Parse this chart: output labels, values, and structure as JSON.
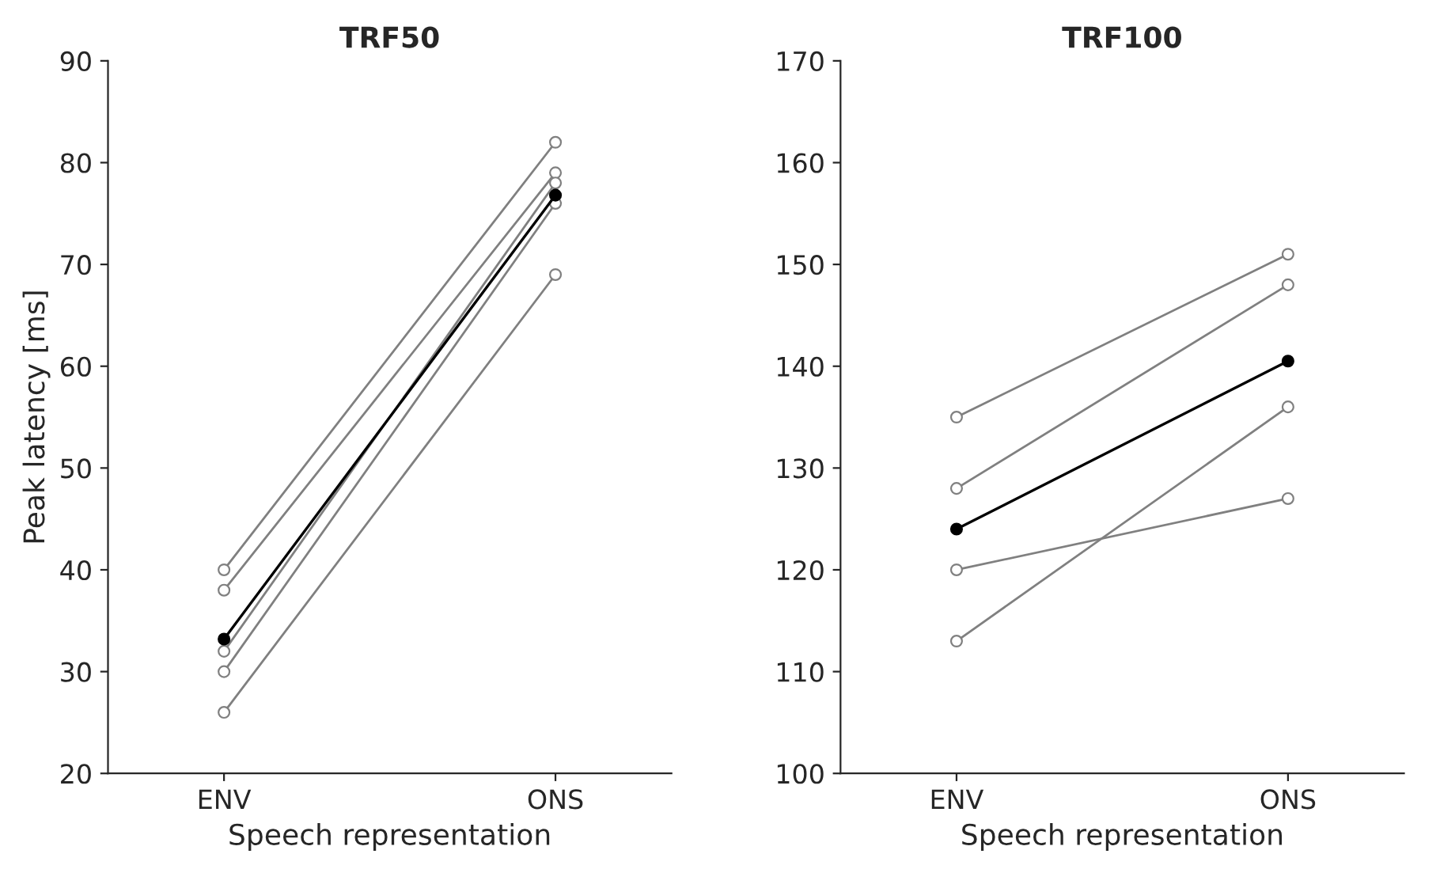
{
  "chart_data": [
    {
      "type": "line",
      "title": "TRF50",
      "xlabel": "Speech representation",
      "ylabel": "Peak latency [ms]",
      "categories": [
        "ENV",
        "ONS"
      ],
      "ylim": [
        20,
        90
      ],
      "yticks": [
        20,
        30,
        40,
        50,
        60,
        70,
        80,
        90
      ],
      "grid": false,
      "legend": false,
      "marker": "circle",
      "series": [
        {
          "color": "#808080",
          "values": [
            40,
            82
          ]
        },
        {
          "color": "#808080",
          "values": [
            38,
            79
          ]
        },
        {
          "color": "#808080",
          "values": [
            32,
            78
          ]
        },
        {
          "color": "#808080",
          "values": [
            30,
            76
          ]
        },
        {
          "color": "#808080",
          "values": [
            26,
            69
          ]
        },
        {
          "color": "#000000",
          "values": [
            33.2,
            76.8
          ]
        }
      ]
    },
    {
      "type": "line",
      "title": "TRF100",
      "xlabel": "Speech representation",
      "categories": [
        "ENV",
        "ONS"
      ],
      "ylim": [
        100,
        170
      ],
      "yticks": [
        100,
        110,
        120,
        130,
        140,
        150,
        160,
        170
      ],
      "grid": false,
      "legend": false,
      "marker": "circle",
      "series": [
        {
          "color": "#808080",
          "values": [
            135,
            151
          ]
        },
        {
          "color": "#808080",
          "values": [
            128,
            148
          ]
        },
        {
          "color": "#808080",
          "values": [
            120,
            127
          ]
        },
        {
          "color": "#808080",
          "values": [
            113,
            136
          ]
        },
        {
          "color": "#000000",
          "values": [
            124,
            140.5
          ]
        }
      ]
    }
  ]
}
